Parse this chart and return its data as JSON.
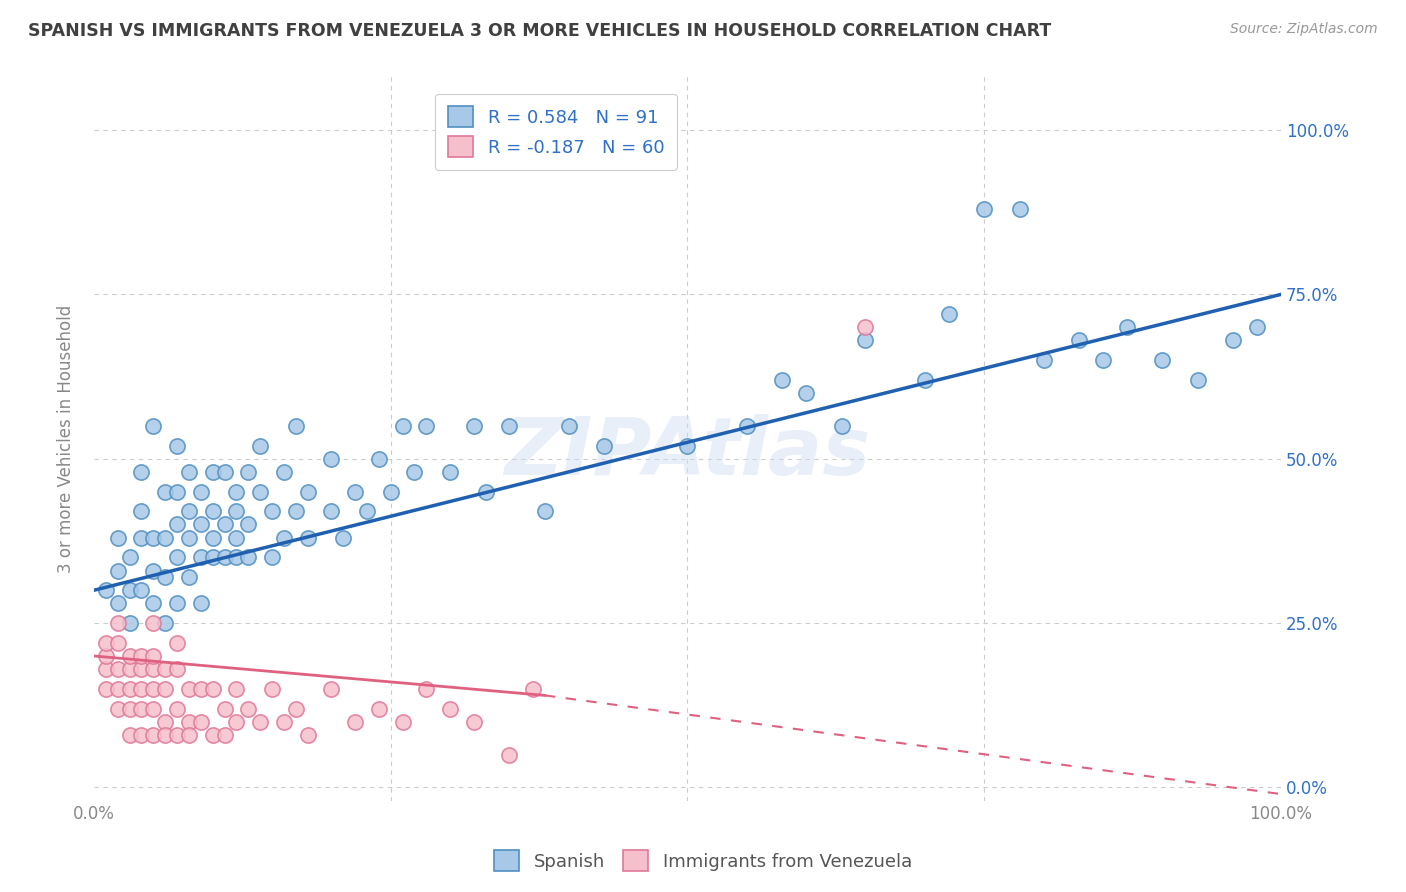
{
  "title": "SPANISH VS IMMIGRANTS FROM VENEZUELA 3 OR MORE VEHICLES IN HOUSEHOLD CORRELATION CHART",
  "source": "Source: ZipAtlas.com",
  "ylabel": "3 or more Vehicles in Household",
  "watermark": "ZIPAtlas",
  "legend1_label": "Spanish",
  "legend2_label": "Immigrants from Venezuela",
  "R1": 0.584,
  "N1": 91,
  "R2": -0.187,
  "N2": 60,
  "blue_color": "#a8c8e8",
  "blue_edge": "#5090c0",
  "pink_color": "#f5c0cc",
  "pink_edge": "#e07898",
  "line_blue": "#2060b0",
  "line_pink": "#e06080",
  "title_color": "#404040",
  "label_color": "#3070c8",
  "axis_color": "#888888",
  "background_color": "#ffffff",
  "grid_color": "#cccccc",
  "xlim": [
    0.0,
    1.0
  ],
  "ylim": [
    -0.02,
    1.08
  ],
  "xtick_positions": [
    0.0,
    1.0
  ],
  "xtick_labels": [
    "0.0%",
    "100.0%"
  ],
  "ytick_values": [
    0.0,
    0.25,
    0.5,
    0.75,
    1.0
  ],
  "ytick_labels": [
    "0.0%",
    "25.0%",
    "50.0%",
    "75.0%",
    "100.0%"
  ],
  "blue_scatter_x": [
    0.01,
    0.02,
    0.02,
    0.02,
    0.03,
    0.03,
    0.03,
    0.04,
    0.04,
    0.04,
    0.04,
    0.05,
    0.05,
    0.05,
    0.05,
    0.06,
    0.06,
    0.06,
    0.06,
    0.07,
    0.07,
    0.07,
    0.07,
    0.07,
    0.08,
    0.08,
    0.08,
    0.08,
    0.09,
    0.09,
    0.09,
    0.09,
    0.1,
    0.1,
    0.1,
    0.1,
    0.11,
    0.11,
    0.11,
    0.12,
    0.12,
    0.12,
    0.12,
    0.13,
    0.13,
    0.13,
    0.14,
    0.14,
    0.15,
    0.15,
    0.16,
    0.16,
    0.17,
    0.17,
    0.18,
    0.18,
    0.2,
    0.2,
    0.21,
    0.22,
    0.23,
    0.24,
    0.25,
    0.26,
    0.27,
    0.28,
    0.3,
    0.32,
    0.33,
    0.35,
    0.38,
    0.4,
    0.43,
    0.5,
    0.55,
    0.58,
    0.6,
    0.63,
    0.65,
    0.7,
    0.72,
    0.75,
    0.78,
    0.8,
    0.83,
    0.85,
    0.87,
    0.9,
    0.93,
    0.96,
    0.98
  ],
  "blue_scatter_y": [
    0.3,
    0.33,
    0.28,
    0.38,
    0.3,
    0.35,
    0.25,
    0.38,
    0.3,
    0.42,
    0.48,
    0.38,
    0.28,
    0.33,
    0.55,
    0.32,
    0.38,
    0.45,
    0.25,
    0.35,
    0.4,
    0.28,
    0.45,
    0.52,
    0.32,
    0.38,
    0.42,
    0.48,
    0.35,
    0.4,
    0.45,
    0.28,
    0.35,
    0.42,
    0.48,
    0.38,
    0.4,
    0.48,
    0.35,
    0.42,
    0.38,
    0.45,
    0.35,
    0.4,
    0.48,
    0.35,
    0.45,
    0.52,
    0.42,
    0.35,
    0.48,
    0.38,
    0.42,
    0.55,
    0.45,
    0.38,
    0.5,
    0.42,
    0.38,
    0.45,
    0.42,
    0.5,
    0.45,
    0.55,
    0.48,
    0.55,
    0.48,
    0.55,
    0.45,
    0.55,
    0.42,
    0.55,
    0.52,
    0.52,
    0.55,
    0.62,
    0.6,
    0.55,
    0.68,
    0.62,
    0.72,
    0.88,
    0.88,
    0.65,
    0.68,
    0.65,
    0.7,
    0.65,
    0.62,
    0.68,
    0.7
  ],
  "pink_scatter_x": [
    0.01,
    0.01,
    0.01,
    0.01,
    0.02,
    0.02,
    0.02,
    0.02,
    0.02,
    0.03,
    0.03,
    0.03,
    0.03,
    0.03,
    0.04,
    0.04,
    0.04,
    0.04,
    0.04,
    0.05,
    0.05,
    0.05,
    0.05,
    0.05,
    0.05,
    0.06,
    0.06,
    0.06,
    0.06,
    0.07,
    0.07,
    0.07,
    0.07,
    0.08,
    0.08,
    0.08,
    0.09,
    0.09,
    0.1,
    0.1,
    0.11,
    0.11,
    0.12,
    0.12,
    0.13,
    0.14,
    0.15,
    0.16,
    0.17,
    0.18,
    0.2,
    0.22,
    0.24,
    0.26,
    0.28,
    0.3,
    0.32,
    0.35,
    0.37,
    0.65
  ],
  "pink_scatter_y": [
    0.18,
    0.2,
    0.15,
    0.22,
    0.15,
    0.18,
    0.22,
    0.12,
    0.25,
    0.15,
    0.18,
    0.12,
    0.2,
    0.08,
    0.18,
    0.15,
    0.12,
    0.2,
    0.08,
    0.18,
    0.15,
    0.12,
    0.2,
    0.08,
    0.25,
    0.1,
    0.15,
    0.18,
    0.08,
    0.12,
    0.18,
    0.08,
    0.22,
    0.15,
    0.1,
    0.08,
    0.15,
    0.1,
    0.15,
    0.08,
    0.12,
    0.08,
    0.15,
    0.1,
    0.12,
    0.1,
    0.15,
    0.1,
    0.12,
    0.08,
    0.15,
    0.1,
    0.12,
    0.1,
    0.15,
    0.12,
    0.1,
    0.05,
    0.15,
    0.7
  ],
  "blue_line": [
    0.0,
    1.0,
    0.3,
    0.75
  ],
  "pink_solid_line": [
    0.0,
    0.38,
    0.2,
    0.14
  ],
  "pink_dash_line": [
    0.38,
    1.0,
    0.14,
    -0.01
  ]
}
